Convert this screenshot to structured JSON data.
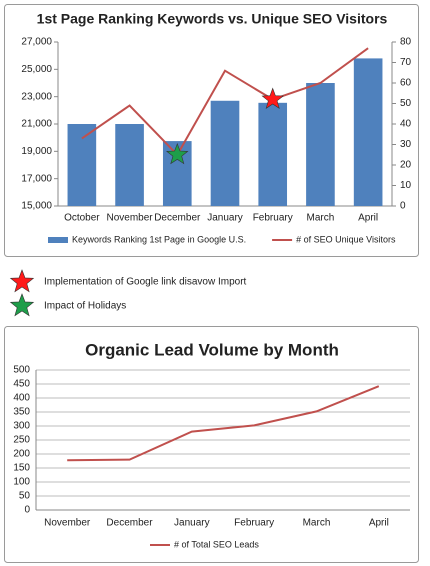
{
  "chart_data": [
    {
      "type": "bar",
      "title": "1st Page Ranking Keywords vs. Unique SEO Visitors",
      "categories": [
        "October",
        "November",
        "December",
        "January",
        "February",
        "March",
        "April"
      ],
      "series": [
        {
          "name": "Keywords Ranking 1st Page in Google U.S.",
          "type": "bar",
          "color": "#4f81bd",
          "values": [
            21000,
            21000,
            19750,
            22700,
            22550,
            24000,
            25800
          ]
        },
        {
          "name": "# of SEO Unique Visitors",
          "type": "line",
          "axis": "y2",
          "color": "#c0504d",
          "values": [
            33,
            49,
            25,
            66,
            52,
            60,
            77
          ]
        }
      ],
      "ylim": [
        15000,
        27000
      ],
      "yticks": [
        {
          "value": 15000,
          "label": "15,000"
        },
        {
          "value": 17000,
          "label": "17,000"
        },
        {
          "value": 19000,
          "label": "19,000"
        },
        {
          "value": 21000,
          "label": "21,000"
        },
        {
          "value": 23000,
          "label": "23,000"
        },
        {
          "value": 25000,
          "label": "25,000"
        },
        {
          "value": 27000,
          "label": "27,000"
        }
      ],
      "y2lim": [
        0,
        80
      ],
      "y2ticks": [
        0,
        10,
        20,
        30,
        40,
        50,
        60,
        70,
        80
      ],
      "grid": false,
      "annotations": [
        {
          "text": "Implementation of Google link disavow Import",
          "category": "February",
          "color": "#ff1a1a"
        },
        {
          "text": "Impact of Holidays",
          "category": "December",
          "color": "#1e9e4a"
        }
      ]
    },
    {
      "type": "line",
      "title": "Organic Lead Volume by Month",
      "categories": [
        "November",
        "December",
        "January",
        "February",
        "March",
        "April"
      ],
      "series": [
        {
          "name": "# of Total SEO Leads",
          "color": "#c0504d",
          "values": [
            178,
            180,
            280,
            302,
            352,
            442
          ]
        }
      ],
      "ylim": [
        0,
        500
      ],
      "yticks": [
        0,
        50,
        100,
        150,
        200,
        250,
        300,
        350,
        400,
        450,
        500
      ],
      "grid": true
    }
  ]
}
